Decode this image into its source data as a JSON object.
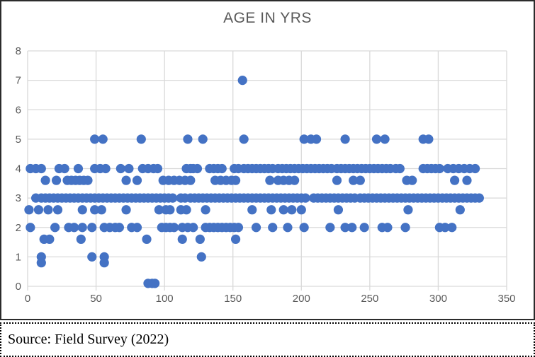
{
  "source": {
    "text": "Source: Field Survey (2022)"
  },
  "colors": {
    "accent": "#4472C4",
    "grid": "#D9D9D9",
    "axis_text": "#595959",
    "title_text": "#595959",
    "frame_border": "#2b2b2b",
    "background": "#ffffff"
  },
  "chart_data": {
    "type": "scatter",
    "title": "AGE IN YRS",
    "xlabel": "",
    "ylabel": "",
    "xlim": [
      0,
      350
    ],
    "ylim": [
      0,
      8
    ],
    "x_ticks": [
      0,
      50,
      100,
      150,
      200,
      250,
      300,
      350
    ],
    "y_ticks": [
      0,
      1,
      2,
      3,
      4,
      5,
      6,
      7,
      8
    ],
    "grid": true,
    "legend": false,
    "marker": {
      "shape": "circle",
      "radius_px": 6.6
    },
    "series_by_level": [
      {
        "y": 7,
        "x": [
          157
        ]
      },
      {
        "y": 5,
        "x": [
          49,
          55,
          83,
          117,
          128,
          158,
          202,
          207,
          211,
          232,
          255,
          261,
          289,
          293
        ]
      },
      {
        "y": 4,
        "x": [
          2,
          6,
          10,
          23,
          27,
          37,
          49,
          53,
          57,
          68,
          74,
          84,
          88,
          92,
          95,
          116,
          119,
          121,
          124,
          133,
          136,
          139,
          142,
          151,
          154,
          158,
          161,
          164,
          167,
          170,
          173,
          176,
          179,
          183,
          186,
          189,
          192,
          195,
          198,
          201,
          204,
          207,
          210,
          213,
          216,
          219,
          222,
          226,
          229,
          232,
          235,
          238,
          241,
          244,
          247,
          250,
          253,
          256,
          259,
          262,
          265,
          269,
          272,
          289,
          292,
          295,
          298,
          301,
          307,
          311,
          315,
          319,
          323,
          327
        ]
      },
      {
        "y": 3.6,
        "x": [
          13,
          21,
          29,
          32,
          35,
          38,
          41,
          44,
          72,
          80,
          99,
          103,
          107,
          111,
          115,
          119,
          137,
          141,
          145,
          149,
          152,
          177,
          183,
          187,
          191,
          195,
          226,
          238,
          243,
          277,
          281,
          312,
          321
        ]
      },
      {
        "y": 3,
        "x": [
          6,
          10,
          13,
          16,
          19,
          22,
          25,
          28,
          31,
          34,
          37,
          40,
          43,
          46,
          49,
          52,
          55,
          58,
          61,
          64,
          67,
          70,
          73,
          76,
          79,
          82,
          85,
          88,
          91,
          94,
          97,
          100,
          103,
          106,
          112,
          115,
          119,
          122,
          125,
          128,
          131,
          134,
          137,
          140,
          143,
          146,
          149,
          152,
          155,
          158,
          161,
          164,
          167,
          170,
          173,
          176,
          179,
          182,
          185,
          188,
          191,
          194,
          197,
          200,
          203,
          209,
          212,
          215,
          218,
          221,
          224,
          227,
          230,
          233,
          236,
          239,
          243,
          246,
          249,
          252,
          255,
          258,
          261,
          264,
          267,
          270,
          273,
          276,
          279,
          282,
          285,
          288,
          291,
          294,
          297,
          300,
          303,
          306,
          309,
          312,
          315,
          318,
          321,
          324,
          327,
          330
        ]
      },
      {
        "y": 2.6,
        "x": [
          1,
          8,
          15,
          22,
          40,
          49,
          54,
          72,
          96,
          101,
          104,
          112,
          116,
          130,
          164,
          178,
          187,
          193,
          200,
          227,
          278,
          316
        ]
      },
      {
        "y": 2,
        "x": [
          2,
          20,
          30,
          34,
          40,
          47,
          56,
          60,
          64,
          67,
          76,
          80,
          98,
          101,
          104,
          107,
          113,
          117,
          121,
          130,
          133,
          136,
          139,
          142,
          145,
          148,
          151,
          154,
          167,
          179,
          190,
          202,
          221,
          232,
          237,
          246,
          259,
          263,
          276,
          301,
          305,
          310
        ]
      },
      {
        "y": 1.6,
        "x": [
          12,
          16,
          39,
          87,
          113,
          126,
          152
        ]
      },
      {
        "y": 1,
        "x": [
          10,
          47,
          56,
          127
        ]
      },
      {
        "y": 0.8,
        "x": [
          10,
          56
        ]
      },
      {
        "y": 0.1,
        "x": [
          88,
          91,
          93
        ]
      }
    ]
  }
}
